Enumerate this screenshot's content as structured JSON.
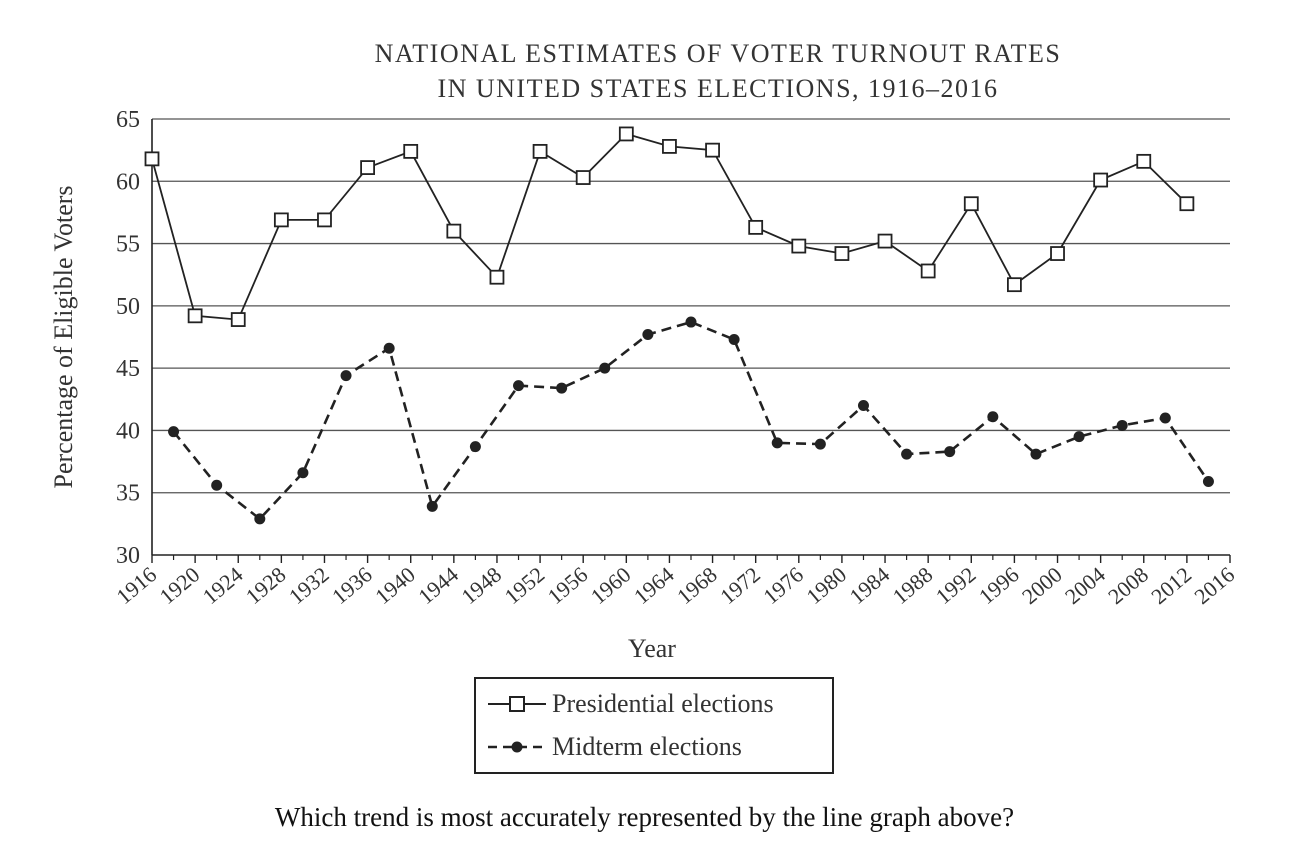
{
  "chart_data": {
    "type": "line",
    "title": [
      "NATIONAL ESTIMATES OF VOTER TURNOUT RATES",
      "IN UNITED STATES ELECTIONS, 1916–2016"
    ],
    "xlabel": "Year",
    "ylabel": "Percentage of Eligible Voters",
    "xlim": [
      1916,
      2016
    ],
    "ylim": [
      30,
      65
    ],
    "x_ticks": [
      "1916",
      "1920",
      "1924",
      "1928",
      "1932",
      "1936",
      "1940",
      "1944",
      "1948",
      "1952",
      "1956",
      "1960",
      "1964",
      "1968",
      "1972",
      "1976",
      "1980",
      "1984",
      "1988",
      "1992",
      "1996",
      "2000",
      "2004",
      "2008",
      "2012",
      "2016"
    ],
    "y_ticks": [
      30,
      35,
      40,
      45,
      50,
      55,
      60,
      65
    ],
    "grid": "horizontal",
    "legend_position": "bottom-center",
    "series": [
      {
        "name": "Presidential elections",
        "marker": "open-square",
        "line": "solid",
        "x": [
          1916,
          1920,
          1924,
          1928,
          1932,
          1936,
          1940,
          1944,
          1948,
          1952,
          1956,
          1960,
          1964,
          1968,
          1972,
          1976,
          1980,
          1984,
          1988,
          1992,
          1996,
          2000,
          2004,
          2008,
          2012
        ],
        "values": [
          61.8,
          49.2,
          48.9,
          56.9,
          56.9,
          61.1,
          62.4,
          56.0,
          52.3,
          62.4,
          60.3,
          63.8,
          62.8,
          62.5,
          56.3,
          54.8,
          54.2,
          55.2,
          52.8,
          58.2,
          51.7,
          54.2,
          60.1,
          61.6,
          58.2
        ]
      },
      {
        "name": "Midterm elections",
        "marker": "filled-circle",
        "line": "dashed",
        "x": [
          1918,
          1922,
          1926,
          1930,
          1934,
          1938,
          1942,
          1946,
          1950,
          1954,
          1958,
          1962,
          1966,
          1970,
          1974,
          1978,
          1982,
          1986,
          1990,
          1994,
          1998,
          2002,
          2006,
          2010,
          2014
        ],
        "values": [
          39.9,
          35.6,
          32.9,
          36.6,
          44.4,
          46.6,
          33.9,
          38.7,
          43.6,
          43.4,
          45.0,
          47.7,
          48.7,
          47.3,
          39.0,
          38.9,
          42.0,
          38.1,
          38.3,
          41.1,
          38.1,
          39.5,
          40.4,
          41.0,
          35.9
        ]
      }
    ]
  },
  "question": "Which trend is most accurately represented by the line graph above?"
}
